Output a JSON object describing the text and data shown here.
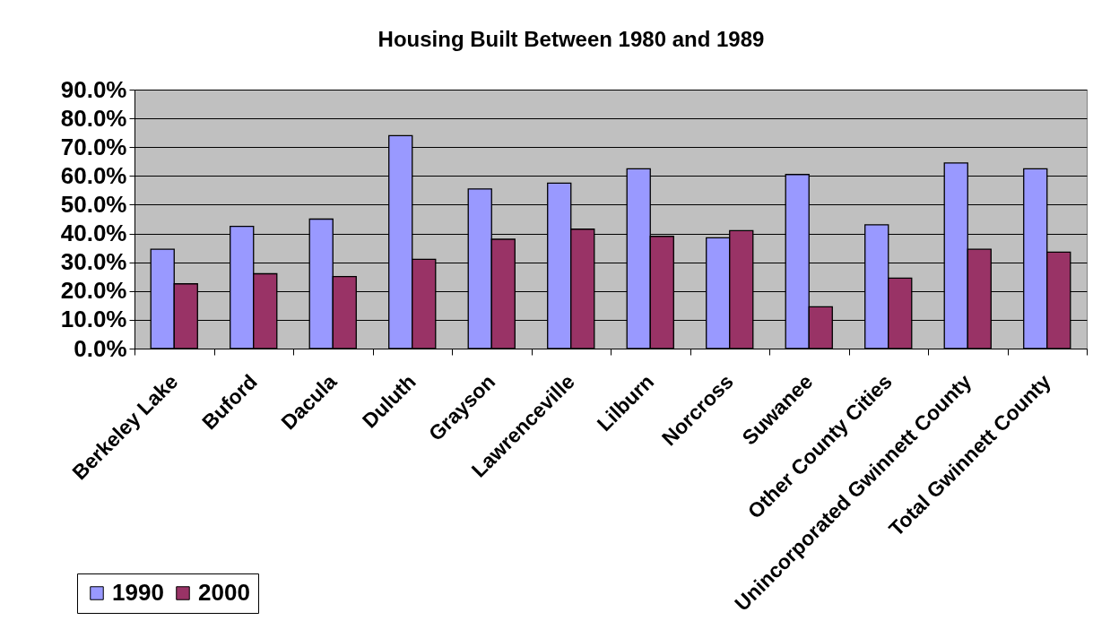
{
  "chart_data": {
    "type": "bar",
    "title": "Housing Built Between 1980 and 1989",
    "categories": [
      "Berkeley Lake",
      "Buford",
      "Dacula",
      "Duluth",
      "Grayson",
      "Lawrenceville",
      "Lilburn",
      "Norcross",
      "Suwanee",
      "Other County Cities",
      "Unincorporated Gwinnett County",
      "Total Gwinnett County"
    ],
    "series": [
      {
        "name": "1990",
        "color": "#9999ff",
        "values": [
          34.5,
          42.5,
          45,
          74,
          55.5,
          57.5,
          62.5,
          38.5,
          60.5,
          43,
          64.5,
          62.5
        ]
      },
      {
        "name": "2000",
        "color": "#993366",
        "values": [
          22.5,
          26,
          25,
          31,
          38,
          41.5,
          39,
          41,
          14.5,
          24.5,
          34.5,
          33.5
        ]
      }
    ],
    "ylim": [
      0,
      90
    ],
    "yticks": [
      {
        "value": 0,
        "label": "0.0%"
      },
      {
        "value": 10,
        "label": "10.0%"
      },
      {
        "value": 20,
        "label": "20.0%"
      },
      {
        "value": 30,
        "label": "30.0%"
      },
      {
        "value": 40,
        "label": "40.0%"
      },
      {
        "value": 50,
        "label": "50.0%"
      },
      {
        "value": 60,
        "label": "60.0%"
      },
      {
        "value": 70,
        "label": "70.0%"
      },
      {
        "value": 80,
        "label": "80.0%"
      },
      {
        "value": 90,
        "label": "90.0%"
      }
    ],
    "grid": "y",
    "legend": "bottom left"
  }
}
